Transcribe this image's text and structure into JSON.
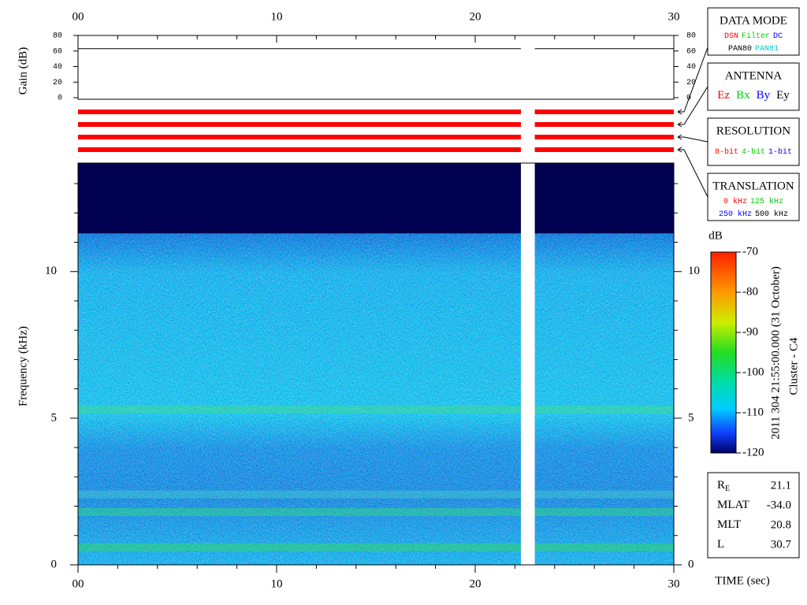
{
  "chart_data": {
    "type": "spectrogram",
    "xlim": [
      0,
      30
    ],
    "xticks": [
      {
        "value": 0,
        "label": "00"
      },
      10,
      20,
      30
    ],
    "xminorticks": [
      2,
      4,
      6,
      8,
      12,
      14,
      16,
      18,
      22,
      24,
      26,
      28
    ],
    "xlabel": "TIME (sec)",
    "data_gap": [
      22.3,
      23.0
    ],
    "gain": {
      "ylabel": "Gain (dB)",
      "ylim": [
        0,
        80
      ],
      "yticks": [
        0,
        20,
        40,
        60,
        80
      ],
      "x": [
        0,
        22.3,
        null,
        23.0,
        30
      ],
      "values": [
        63,
        63,
        null,
        63,
        63
      ]
    },
    "status_color": "#ff0000",
    "spectrum": {
      "ylabel": "Frequency (kHz)",
      "ylim": [
        0,
        13.7
      ],
      "yticks": [
        0,
        5,
        10
      ],
      "yminorticks": [
        1,
        2,
        3,
        4,
        6,
        7,
        8,
        9,
        11,
        12,
        13
      ],
      "noise_top": 11.3,
      "bands": [
        {
          "freq": 0.6,
          "color": "#33e055"
        },
        {
          "freq": 1.8,
          "color": "#33e077"
        },
        {
          "freq": 2.4,
          "color": "#44d0cc"
        },
        {
          "freq": 5.3,
          "color": "#44dd88"
        }
      ]
    },
    "colorbar": {
      "label": "dB",
      "ylim": [
        -120,
        -70
      ],
      "yticks": [
        -70,
        -80,
        -90,
        -100,
        -110,
        -120
      ]
    },
    "side_title": "2011 304 21:55:00.000 (31 October)",
    "side_subtitle": "Cluster - C4",
    "legend_boxes": [
      {
        "title": "DATA MODE",
        "rows": [
          [
            {
              "text": "DSN",
              "color": "#ff0000"
            },
            {
              "text": "Filter",
              "color": "#00cc00"
            },
            {
              "text": "DC",
              "color": "#0000ff"
            }
          ],
          [
            {
              "text": "PAN80",
              "color": "#000000"
            },
            {
              "text": "PAN81",
              "color": "#00cccc"
            }
          ]
        ]
      },
      {
        "title": "ANTENNA",
        "rows": [
          [
            {
              "text": "Ez",
              "color": "#ff0000"
            },
            {
              "text": "Bx",
              "color": "#00cc00"
            },
            {
              "text": "By",
              "color": "#0000ff"
            },
            {
              "text": "Ey",
              "color": "#000000"
            }
          ]
        ]
      },
      {
        "title": "RESOLUTION",
        "rows": [
          [
            {
              "text": "8-bit",
              "color": "#ff0000"
            },
            {
              "text": "4-bit",
              "color": "#00cc00"
            },
            {
              "text": "1-bit",
              "color": "#0000ff"
            }
          ]
        ]
      },
      {
        "title": "TRANSLATION",
        "rows": [
          [
            {
              "text": "0 kHz",
              "color": "#ff0000"
            },
            {
              "text": "125 kHz",
              "color": "#00cc00"
            }
          ],
          [
            {
              "text": "250 kHz",
              "color": "#0000ff"
            },
            {
              "text": "500 kHz",
              "color": "#000000"
            }
          ]
        ]
      }
    ],
    "info": [
      {
        "label": "R",
        "sub": "E",
        "value": "21.1"
      },
      {
        "label": "MLAT",
        "value": "-34.0"
      },
      {
        "label": "MLT",
        "value": "20.8"
      },
      {
        "label": "L",
        "value": "30.7"
      }
    ]
  }
}
